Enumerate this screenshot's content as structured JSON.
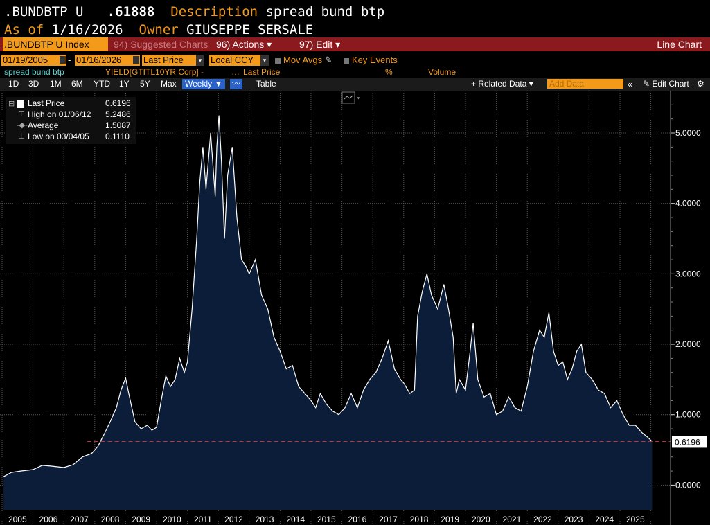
{
  "header": {
    "ticker": ".BUNDBTP U",
    "price": ".61888",
    "desc_label": "Description",
    "desc_value": "spread bund btp",
    "asof_label": "As of",
    "asof_value": "1/16/2026",
    "owner_label": "Owner",
    "owner_value": "GIUSEPPE SERSALE"
  },
  "menubar": {
    "security": ".BUNDBTP U Index",
    "suggested": "94) Suggested Charts",
    "actions": "96) Actions",
    "edit": "97) Edit",
    "chart_type": "Line Chart"
  },
  "controls": {
    "start_date": "01/19/2005",
    "end_date": "01/16/2026",
    "field": "Last Price",
    "currency": "Local CCY",
    "mov_avgs": "Mov Avgs",
    "key_events": "Key Events"
  },
  "info_row": {
    "name": "spread bund btp",
    "formula": "YIELD[GTITL10YR Corp] -",
    "ellipsis": "…",
    "field": "Last Price",
    "unit": "%",
    "volume": "Volume"
  },
  "toolbar": {
    "periods": [
      "1D",
      "3D",
      "1M",
      "6M",
      "YTD",
      "1Y",
      "5Y",
      "Max"
    ],
    "frequency": "Weekly",
    "table": "Table",
    "related": "+ Related Data",
    "add_data_placeholder": "Add Data",
    "edit_chart": "Edit Chart"
  },
  "legend": {
    "last_label": "Last Price",
    "last_value": "0.6196",
    "high_label": "High on 01/06/12",
    "high_value": "5.2486",
    "avg_label": "Average",
    "avg_value": "1.5087",
    "low_label": "Low on 03/04/05",
    "low_value": "0.1110"
  },
  "colors": {
    "accent": "#f39a1b",
    "menubar": "#8b1a1f",
    "area_fill": "#0b1d38",
    "line": "#ffffff",
    "last_price_line": "#e0343b"
  },
  "chart_data": {
    "type": "area",
    "ylim": [
      -0.35,
      5.6
    ],
    "yticks": [
      0,
      1,
      2,
      3,
      4,
      5
    ],
    "ytick_labels": [
      "0.0000",
      "1.0000",
      "2.0000",
      "3.0000",
      "4.0000",
      "5.0000"
    ],
    "x_labels": [
      "2005",
      "2006",
      "2007",
      "2008",
      "2009",
      "2010",
      "2011",
      "2012",
      "2013",
      "2014",
      "2015",
      "2016",
      "2017",
      "2018",
      "2019",
      "2020",
      "2021",
      "2022",
      "2023",
      "2024",
      "2025"
    ],
    "last_value": 0.6196,
    "last_value_label": "0.6196",
    "series": [
      {
        "x": [
          2005.05,
          2005.3,
          2005.6,
          2006.0,
          2006.3,
          2006.6,
          2007.0,
          2007.3,
          2007.6,
          2007.9,
          2008.1,
          2008.3,
          2008.5,
          2008.7,
          2008.85,
          2009.0,
          2009.1,
          2009.3,
          2009.5,
          2009.7,
          2009.85,
          2010.0,
          2010.15,
          2010.3,
          2010.45,
          2010.6,
          2010.75,
          2010.9,
          2011.0,
          2011.15,
          2011.3,
          2011.4,
          2011.5,
          2011.6,
          2011.75,
          2011.9,
          2011.95,
          2012.02,
          2012.1,
          2012.2,
          2012.3,
          2012.45,
          2012.6,
          2012.75,
          2012.9,
          2013.0,
          2013.2,
          2013.4,
          2013.6,
          2013.8,
          2014.0,
          2014.2,
          2014.4,
          2014.6,
          2014.8,
          2015.0,
          2015.15,
          2015.3,
          2015.5,
          2015.7,
          2015.9,
          2016.1,
          2016.3,
          2016.5,
          2016.7,
          2016.9,
          2017.1,
          2017.3,
          2017.5,
          2017.7,
          2017.9,
          2018.0,
          2018.2,
          2018.35,
          2018.45,
          2018.6,
          2018.75,
          2018.9,
          2019.1,
          2019.3,
          2019.45,
          2019.6,
          2019.7,
          2019.8,
          2020.0,
          2020.15,
          2020.25,
          2020.4,
          2020.6,
          2020.8,
          2021.0,
          2021.2,
          2021.4,
          2021.6,
          2021.8,
          2022.0,
          2022.2,
          2022.4,
          2022.55,
          2022.7,
          2022.85,
          2023.0,
          2023.15,
          2023.3,
          2023.45,
          2023.6,
          2023.75,
          2023.9,
          2024.1,
          2024.3,
          2024.5,
          2024.7,
          2024.9,
          2025.1,
          2025.3,
          2025.5,
          2025.7,
          2025.9,
          2026.04
        ],
        "y": [
          0.12,
          0.18,
          0.2,
          0.22,
          0.28,
          0.27,
          0.25,
          0.29,
          0.4,
          0.45,
          0.55,
          0.72,
          0.9,
          1.1,
          1.35,
          1.52,
          1.3,
          0.9,
          0.8,
          0.85,
          0.78,
          0.82,
          1.2,
          1.55,
          1.4,
          1.5,
          1.8,
          1.6,
          1.75,
          2.5,
          3.5,
          4.3,
          4.8,
          4.2,
          5.0,
          4.1,
          4.8,
          5.25,
          4.6,
          3.5,
          4.4,
          4.8,
          3.8,
          3.2,
          3.1,
          3.0,
          3.2,
          2.7,
          2.5,
          2.1,
          1.9,
          1.65,
          1.7,
          1.4,
          1.3,
          1.2,
          1.1,
          1.3,
          1.15,
          1.05,
          1.0,
          1.1,
          1.3,
          1.1,
          1.35,
          1.5,
          1.6,
          1.8,
          2.05,
          1.65,
          1.5,
          1.45,
          1.3,
          1.35,
          2.4,
          2.75,
          3.0,
          2.7,
          2.5,
          2.85,
          2.5,
          2.1,
          1.3,
          1.5,
          1.35,
          1.9,
          2.3,
          1.5,
          1.25,
          1.3,
          1.0,
          1.05,
          1.25,
          1.1,
          1.05,
          1.4,
          1.9,
          2.2,
          2.1,
          2.45,
          1.9,
          1.7,
          1.75,
          1.5,
          1.65,
          1.9,
          2.0,
          1.6,
          1.5,
          1.35,
          1.3,
          1.1,
          1.2,
          1.0,
          0.85,
          0.85,
          0.75,
          0.68,
          0.62
        ]
      }
    ]
  }
}
